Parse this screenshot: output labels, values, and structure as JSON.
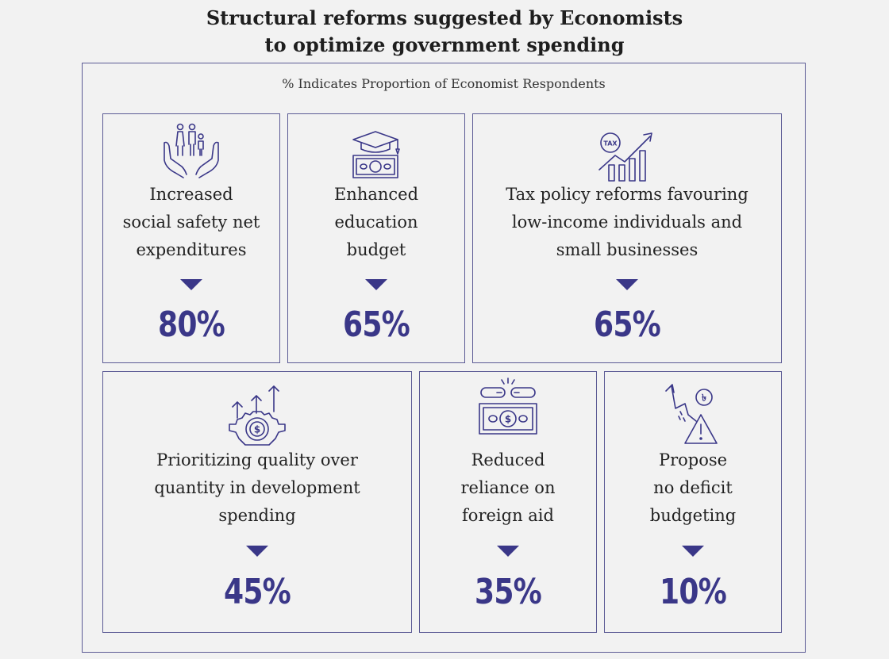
{
  "title_line1": "Structural reforms suggested by Economists",
  "title_line2": "to optimize government spending",
  "subtitle": "% Indicates Proportion of Economist Respondents",
  "colors": {
    "accent": "#3a3788",
    "border": "#5c5b95",
    "background": "#f2f2f2"
  },
  "chart_data": {
    "type": "table",
    "categories": [
      "Increased social safety net expenditures",
      "Enhanced education budget",
      "Tax policy reforms favouring low-income individuals and small businesses",
      "Prioritizing quality over quantity in development spending",
      "Reduced reliance on foreign aid",
      "Propose no deficit budgeting"
    ],
    "values": [
      80,
      65,
      65,
      45,
      35,
      10
    ]
  },
  "cards": [
    {
      "icon": "family-hands-icon",
      "lines": [
        "Increased",
        "social safety net",
        "expenditures"
      ],
      "value": "80%"
    },
    {
      "icon": "graduation-cap-money-icon",
      "lines": [
        "Enhanced",
        "education",
        "budget"
      ],
      "value": "65%"
    },
    {
      "icon": "tax-growth-chart-icon",
      "lines": [
        "Tax policy reforms favouring",
        "low-income individuals and",
        "small businesses"
      ],
      "value": "65%"
    },
    {
      "icon": "gear-arrows-dollar-icon",
      "lines": [
        "Prioritizing quality over",
        "quantity in development",
        "spending"
      ],
      "value": "45%"
    },
    {
      "icon": "broken-chain-money-icon",
      "lines": [
        "Reduced",
        "reliance on",
        "foreign aid"
      ],
      "value": "35%"
    },
    {
      "icon": "falling-taka-warning-icon",
      "lines": [
        "Propose",
        "no deficit",
        "budgeting"
      ],
      "value": "10%"
    }
  ]
}
